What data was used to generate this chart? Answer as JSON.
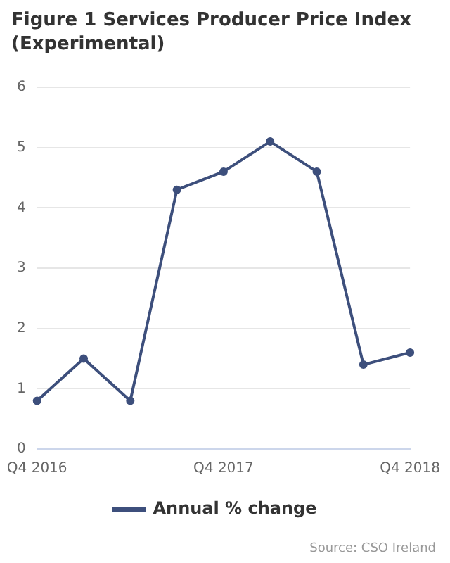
{
  "chart_data": {
    "type": "line",
    "title": "Figure 1 Services Producer Price Index (Experimental)",
    "categories": [
      "Q4 2016",
      null,
      null,
      null,
      "Q4 2017",
      null,
      null,
      null,
      "Q4 2018"
    ],
    "series": [
      {
        "name": "Annual % change",
        "color": "#3d4f7c",
        "values": [
          0.8,
          1.5,
          0.8,
          4.3,
          4.6,
          5.1,
          4.6,
          1.4,
          1.6
        ]
      }
    ],
    "ylim": [
      0,
      6
    ],
    "yticks": [
      0,
      1,
      2,
      3,
      4,
      5,
      6
    ],
    "grid": "y",
    "legend": "bottom",
    "marker": "circle",
    "line_style": "solid",
    "annotations": [
      "Source: CSO Ireland"
    ]
  }
}
